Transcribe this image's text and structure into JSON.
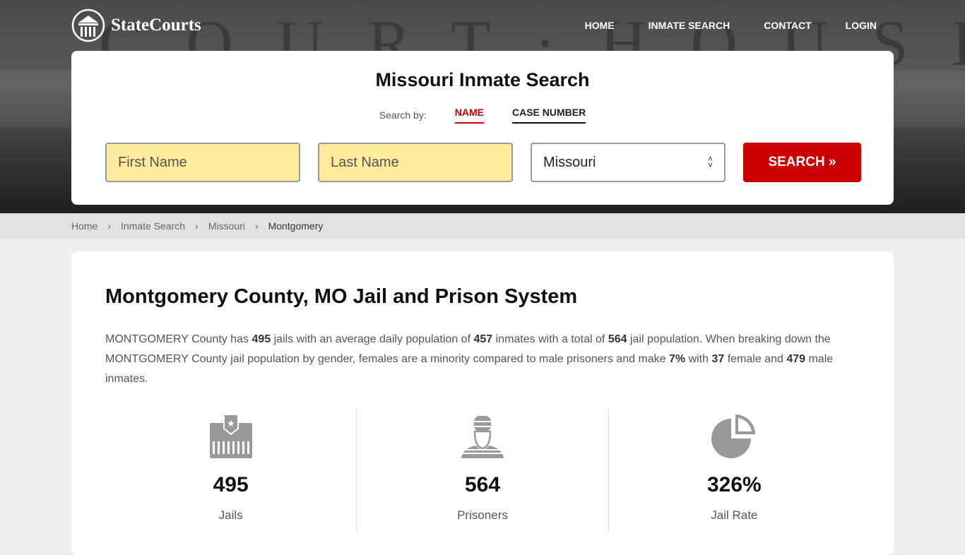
{
  "header": {
    "logo_text": "StateCourts",
    "bg_text": "COURT·HOUSE",
    "nav": [
      "HOME",
      "INMATE SEARCH",
      "CONTACT",
      "LOGIN"
    ]
  },
  "search": {
    "title": "Missouri Inmate Search",
    "search_by": "Search by:",
    "tabs": [
      "NAME",
      "CASE NUMBER"
    ],
    "first_name_placeholder": "First Name",
    "last_name_placeholder": "Last Name",
    "state": "Missouri",
    "button": "SEARCH »",
    "accent": "#cc0000"
  },
  "breadcrumb": [
    "Home",
    "Inmate Search",
    "Missouri",
    "Montgomery"
  ],
  "main": {
    "title": "Montgomery County, MO Jail and Prison System",
    "para": [
      "MONTGOMERY County has ",
      "495",
      " jails with an average daily population of ",
      "457",
      " inmates with a total of ",
      "564",
      " jail population. When breaking down the MONTGOMERY County jail population by gender, females are a minority compared to male prisoners and make ",
      "7%",
      " with ",
      "37",
      " female and ",
      "479",
      " male inmates."
    ],
    "stats": [
      {
        "icon": "jail-icon",
        "value": "495",
        "label": "Jails"
      },
      {
        "icon": "prisoner-icon",
        "value": "564",
        "label": "Prisoners"
      },
      {
        "icon": "pie-chart-icon",
        "value": "326%",
        "label": "Jail Rate"
      }
    ]
  }
}
